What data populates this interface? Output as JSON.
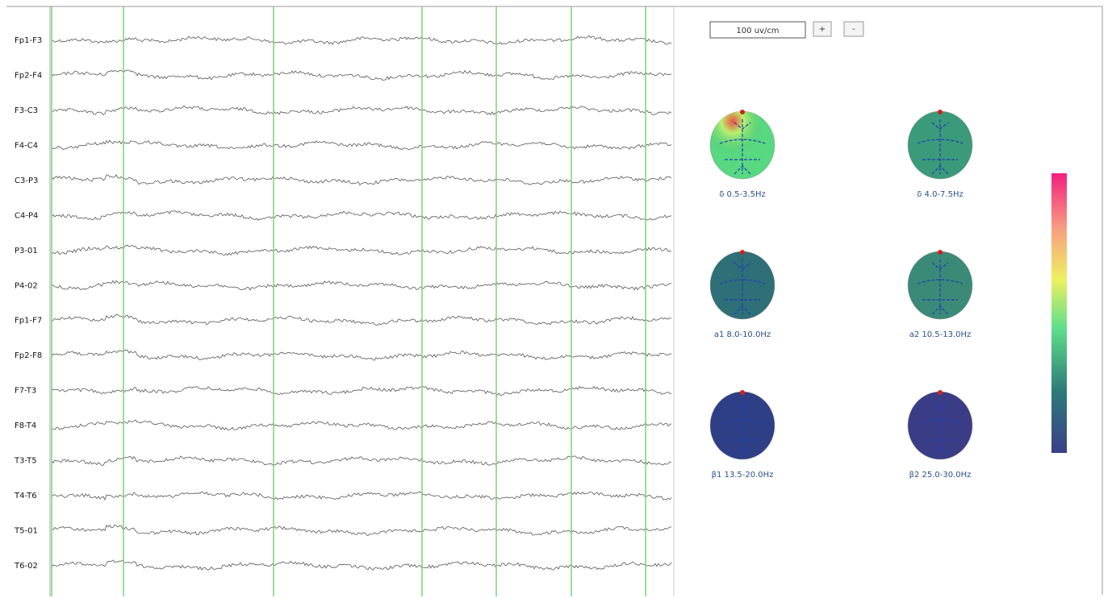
{
  "channels": [
    "Fp1-F3",
    "Fp2-F4",
    "F3-C3",
    "F4-C4",
    "C3-P3",
    "C4-P4",
    "P3-01",
    "P4-02",
    "Fp1-F7",
    "Fp2-F8",
    "F7-T3",
    "F8-T4",
    "T3-T5",
    "T4-T6",
    "T5-01",
    "T6-02"
  ],
  "scale": {
    "value": "100 uv/cm",
    "buttons": [
      "+",
      "-"
    ]
  },
  "topomaps": [
    {
      "label": "δ 0.5-3.5Hz"
    },
    {
      "label": "δ 4.0-7.5Hz"
    },
    {
      "label": "a1 8.0-10.0Hz"
    },
    {
      "label": "a2 10.5-13.0Hz"
    },
    {
      "label": "β1 13.5-20.0Hz"
    },
    {
      "label": "β2 25.0-30.0Hz"
    }
  ]
}
